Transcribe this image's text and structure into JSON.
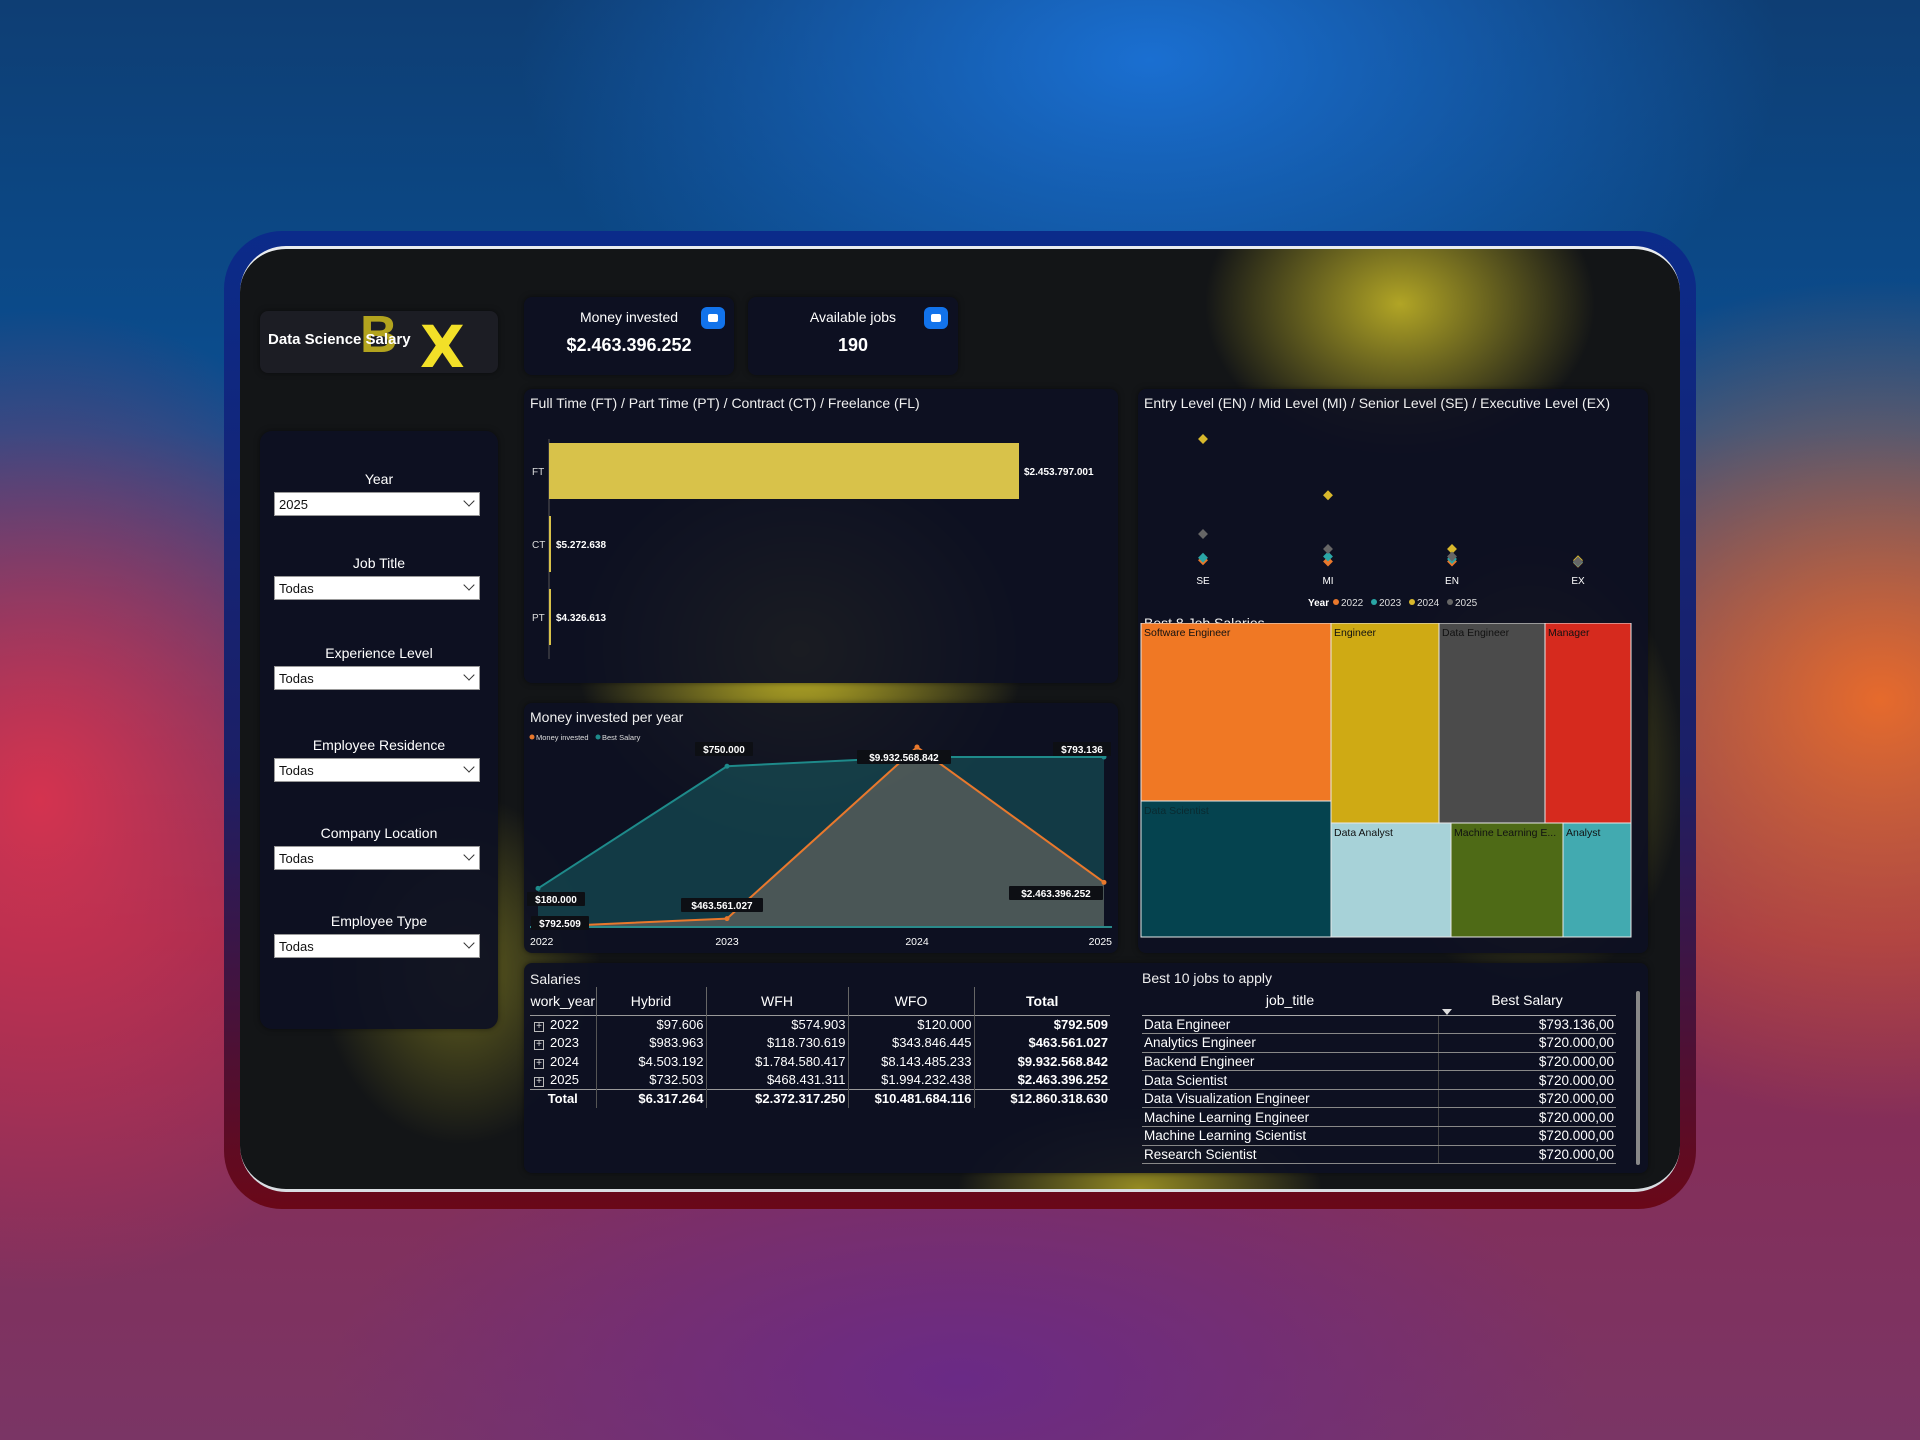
{
  "logo": {
    "title": "Data Science Salary",
    "letters": [
      "B",
      "X"
    ]
  },
  "kpis": {
    "money_label": "Money invested",
    "money_value": "$2.463.396.252",
    "jobs_label": "Available jobs",
    "jobs_value": "190"
  },
  "filters": [
    {
      "label": "Year",
      "value": "2025"
    },
    {
      "label": "Job Title",
      "value": "Todas"
    },
    {
      "label": "Experience Level",
      "value": "Todas"
    },
    {
      "label": "Employee Residence",
      "value": "Todas"
    },
    {
      "label": "Company Location",
      "value": "Todas"
    },
    {
      "label": "Employee Type",
      "value": "Todas"
    }
  ],
  "colors": {
    "accent_yellow": "#d8c24a",
    "teal": "#1e8a8a",
    "orange": "#e9782c",
    "kpi_icon": "#1273eb"
  },
  "chart_data": [
    {
      "type": "bar",
      "orientation": "horizontal",
      "title": "Full Time (FT) / Part Time (PT) / Contract (CT) / Freelance (FL)",
      "categories": [
        "FT",
        "CT",
        "PT"
      ],
      "values": [
        2453797001,
        5272638,
        4326613
      ],
      "labels": [
        "$2.453.797.001",
        "$5.272.638",
        "$4.326.613"
      ],
      "color": "#d8c24a"
    },
    {
      "type": "scatter",
      "title": "Entry Level (EN) / Mid Level  (MI) / Senior Level (SE) / Executive Level (EX)",
      "categories": [
        "SE",
        "MI",
        "EN",
        "EX"
      ],
      "legend_title": "Year",
      "legend_position": "bottom",
      "series": [
        {
          "name": "2022",
          "color": "#e9782c",
          "values": [
            0.03,
            0.02,
            0.02,
            0.01
          ]
        },
        {
          "name": "2023",
          "color": "#2aa6a6",
          "values": [
            0.05,
            0.06,
            0.04,
            0.015
          ]
        },
        {
          "name": "2024",
          "color": "#d8b82c",
          "values": [
            1.0,
            0.55,
            0.12,
            0.03
          ]
        },
        {
          "name": "2025",
          "color": "#666666",
          "values": [
            0.24,
            0.12,
            0.06,
            0.02
          ]
        }
      ]
    },
    {
      "type": "treemap",
      "title": "Best 8 Job Salaries",
      "items": [
        {
          "name": "Software Engineer",
          "color": "#f07824"
        },
        {
          "name": "Engineer",
          "color": "#cfaa14"
        },
        {
          "name": "Data Engineer",
          "color": "#4b4b4b"
        },
        {
          "name": "Manager",
          "color": "#d62a1e"
        },
        {
          "name": "Data Scientist",
          "color": "#05434f"
        },
        {
          "name": "Data Analyst",
          "color": "#a7d2d8"
        },
        {
          "name": "Machine Learning E...",
          "color": "#4e6a16"
        },
        {
          "name": "Analyst",
          "color": "#42aab0"
        }
      ]
    },
    {
      "type": "area",
      "title": "Money invested per year",
      "x": [
        "2022",
        "2023",
        "2024",
        "2025"
      ],
      "legend_position": "top-left",
      "series": [
        {
          "name": "Money invested",
          "color": "#e9782c",
          "values": [
            792509,
            463561027,
            9932568842,
            2463396252
          ],
          "labels": [
            "$792.509",
            "$463.561.027",
            "$9.932.568.842",
            "$2.463.396.252"
          ]
        },
        {
          "name": "Best Salary",
          "color": "#1e8a8a",
          "values": [
            180000,
            750000,
            793136,
            793136
          ],
          "labels": [
            "$180.000",
            "$750.000",
            "",
            "$793.136"
          ]
        }
      ]
    }
  ],
  "salaries": {
    "title": "Salaries",
    "headers": [
      "work_year",
      "Hybrid",
      "WFH",
      "WFO",
      "Total"
    ],
    "rows": [
      [
        "2022",
        "$97.606",
        "$574.903",
        "$120.000",
        "$792.509"
      ],
      [
        "2023",
        "$983.963",
        "$118.730.619",
        "$343.846.445",
        "$463.561.027"
      ],
      [
        "2024",
        "$4.503.192",
        "$1.784.580.417",
        "$8.143.485.233",
        "$9.932.568.842"
      ],
      [
        "2025",
        "$732.503",
        "$468.431.311",
        "$1.994.232.438",
        "$2.463.396.252"
      ]
    ],
    "total": [
      "Total",
      "$6.317.264",
      "$2.372.317.250",
      "$10.481.684.116",
      "$12.860.318.630"
    ]
  },
  "best_jobs": {
    "title": "Best 10 jobs to apply",
    "headers": [
      "job_title",
      "Best Salary"
    ],
    "rows": [
      [
        "Data Engineer",
        "$793.136,00"
      ],
      [
        "Analytics Engineer",
        "$720.000,00"
      ],
      [
        "Backend Engineer",
        "$720.000,00"
      ],
      [
        "Data Scientist",
        "$720.000,00"
      ],
      [
        "Data Visualization Engineer",
        "$720.000,00"
      ],
      [
        "Machine Learning Engineer",
        "$720.000,00"
      ],
      [
        "Machine Learning Scientist",
        "$720.000,00"
      ],
      [
        "Research Scientist",
        "$720.000,00"
      ]
    ]
  }
}
